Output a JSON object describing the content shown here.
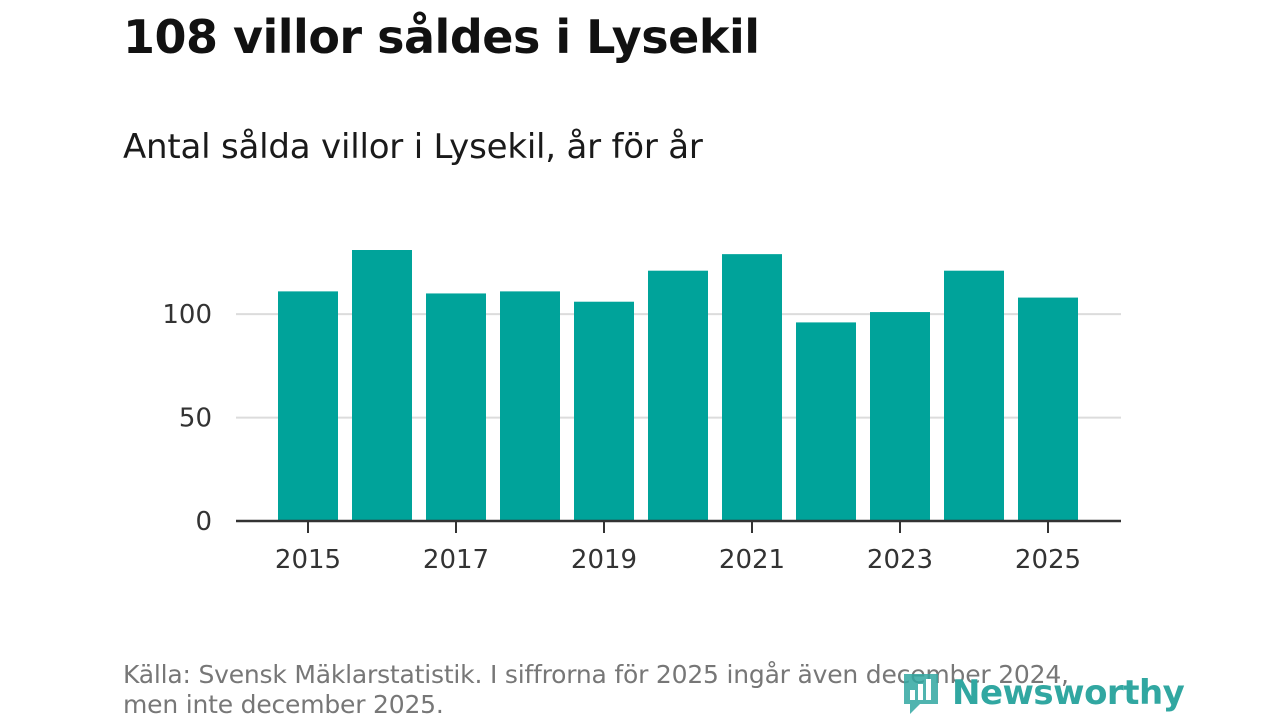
{
  "header": {
    "title": "108 villor såldes i Lysekil",
    "subtitle": "Antal sålda villor i Lysekil, år för år"
  },
  "footer": {
    "source_line1": "Källa: Svensk Mäklarstatistik. I siffrorna för 2025 ingår även december 2024,",
    "source_line2": "men inte december 2025."
  },
  "brand": {
    "logo_text": "Newsworthy",
    "logo_icon": "newsworthy-logo-icon",
    "logo_color": "#31a7a1"
  },
  "chart_data": {
    "type": "bar",
    "categories": [
      "2015",
      "2016",
      "2017",
      "2018",
      "2019",
      "2020",
      "2021",
      "2022",
      "2023",
      "2024",
      "2025"
    ],
    "values": [
      111,
      131,
      110,
      111,
      106,
      121,
      129,
      96,
      101,
      121,
      108
    ],
    "x_tick_labels": [
      "2015",
      "2017",
      "2019",
      "2021",
      "2023",
      "2025"
    ],
    "y_ticks": [
      0,
      50,
      100
    ],
    "ylim": [
      0,
      131
    ],
    "bar_color": "#00a39a",
    "grid": true,
    "grid_color": "#dcdcdc",
    "xlabel": "",
    "ylabel": ""
  }
}
